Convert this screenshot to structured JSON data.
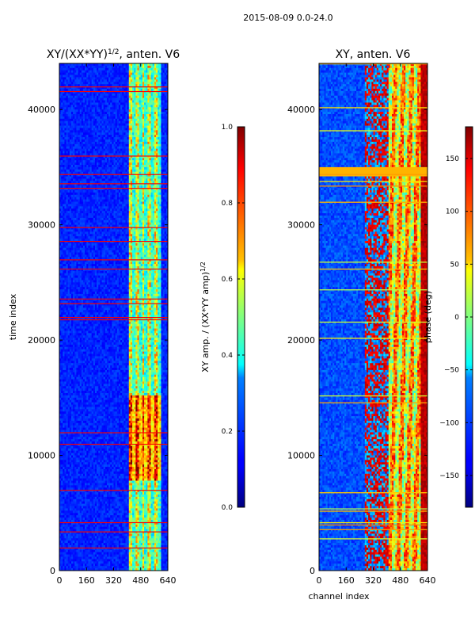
{
  "figure": {
    "suptitle": "2015-08-09 0.0-24.0"
  },
  "chart_data": [
    {
      "type": "heatmap",
      "title": "XY/(XX*YY)^{1/2}, anten. V6",
      "title_main": "XY/(XX*YY)",
      "title_sup": "1/2",
      "title_tail": ", anten. V6",
      "xlabel": "",
      "ylabel": "time index",
      "xlim": [
        0,
        640
      ],
      "ylim": [
        0,
        44000
      ],
      "xticks": [
        0,
        160,
        320,
        480,
        640
      ],
      "yticks": [
        0,
        10000,
        20000,
        30000,
        40000
      ],
      "colormap": "jet",
      "colorbar": {
        "label": "XY amp. / (XX*YY amp)^{1/2}",
        "label_main": "XY amp. / (XX*YY amp)",
        "label_sup": "1/2",
        "range": [
          0.0,
          1.0
        ],
        "ticks": [
          "0.0",
          "0.2",
          "0.4",
          "0.6",
          "0.8",
          "1.0"
        ],
        "tick_values": [
          0.0,
          0.2,
          0.4,
          0.6,
          0.8,
          1.0
        ]
      }
    },
    {
      "type": "heatmap",
      "title": "XY, anten. V6",
      "xlabel": "channel index",
      "ylabel": "",
      "xlim": [
        0,
        640
      ],
      "ylim": [
        0,
        44000
      ],
      "xticks": [
        0,
        160,
        320,
        480,
        640
      ],
      "yticks": [
        0,
        10000,
        20000,
        30000,
        40000
      ],
      "colormap": "jet",
      "colorbar": {
        "label": "phase (deg)",
        "range": [
          -180,
          180
        ],
        "ticks": [
          "−150",
          "−100",
          "−50",
          "0",
          "50",
          "100",
          "150"
        ],
        "tick_values": [
          -150,
          -100,
          -50,
          0,
          50,
          100,
          150
        ]
      }
    }
  ]
}
